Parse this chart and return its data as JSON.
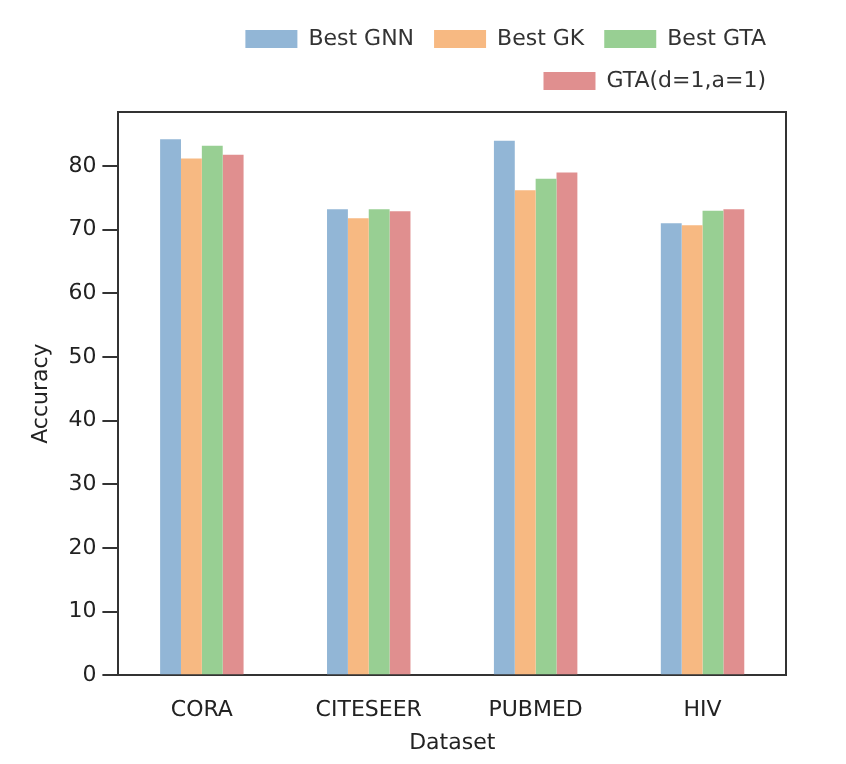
{
  "chart_data": {
    "type": "bar",
    "xlabel": "Dataset",
    "ylabel": "Accuracy",
    "categories": [
      "CORA",
      "CITESEER",
      "PUBMED",
      "HIV"
    ],
    "series": [
      {
        "name": "Best GNN",
        "color": "#92b6d6",
        "values": [
          84.2,
          73.2,
          84.0,
          71.0
        ]
      },
      {
        "name": "Best GK",
        "color": "#f7b982",
        "values": [
          81.2,
          71.8,
          76.2,
          70.7
        ]
      },
      {
        "name": "Best GTA",
        "color": "#98cf93",
        "values": [
          83.2,
          73.2,
          78.0,
          73.0
        ]
      },
      {
        "name": "GTA(d=1,a=1)",
        "color": "#e08f8f",
        "values": [
          81.8,
          72.9,
          79.0,
          73.2
        ]
      }
    ],
    "ylim": [
      0,
      88.5
    ],
    "yticks": [
      0,
      10,
      20,
      30,
      40,
      50,
      60,
      70,
      80
    ],
    "grid": false,
    "legend": "top right"
  }
}
